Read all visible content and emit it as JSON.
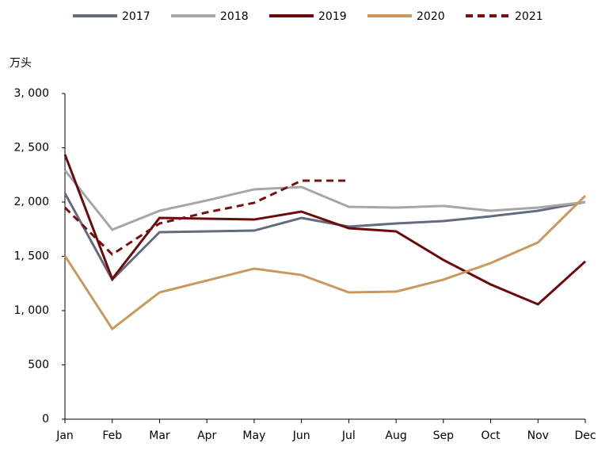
{
  "chart_data": {
    "type": "line",
    "y_label": "万头",
    "categories": [
      "Jan",
      "Feb",
      "Mar",
      "Apr",
      "May",
      "Jun",
      "Jul",
      "Aug",
      "Sep",
      "Oct",
      "Nov",
      "Dec"
    ],
    "series": [
      {
        "name": "2017",
        "color": "#636b7e",
        "dashed": false,
        "values": [
          2080,
          1285,
          1723,
          1730,
          1737,
          1854,
          1774,
          1803,
          1825,
          1869,
          1920,
          2000
        ]
      },
      {
        "name": "2018",
        "color": "#a6a6a6",
        "dashed": false,
        "values": [
          2292,
          1745,
          1920,
          2015,
          2117,
          2139,
          1956,
          1949,
          1964,
          1920,
          1949,
          2000
        ]
      },
      {
        "name": "2019",
        "color": "#6b0a0a",
        "dashed": false,
        "values": [
          2438,
          1292,
          1854,
          1847,
          1839,
          1912,
          1759,
          1730,
          1467,
          1241,
          1058,
          1453
        ]
      },
      {
        "name": "2020",
        "color": "#c8995a",
        "dashed": false,
        "values": [
          1504,
          832,
          1168,
          1277,
          1387,
          1328,
          1168,
          1175,
          1285,
          1438,
          1628,
          2058
        ]
      },
      {
        "name": "2021",
        "color": "#7b0f0f",
        "dashed": true,
        "values": [
          1949,
          1518,
          1803,
          1905,
          1993,
          2197,
          2197,
          null,
          null,
          null,
          null,
          null
        ]
      }
    ],
    "ylim": [
      0,
      3000
    ],
    "yticks": [
      0,
      500,
      {
        "value": 1000,
        "label": "1, 000"
      },
      {
        "value": 1500,
        "label": "1, 500"
      },
      {
        "value": 2000,
        "label": "2, 000"
      },
      {
        "value": 2500,
        "label": "2, 500"
      },
      {
        "value": 3000,
        "label": "3, 000"
      }
    ],
    "grid": false,
    "legend": "top"
  }
}
